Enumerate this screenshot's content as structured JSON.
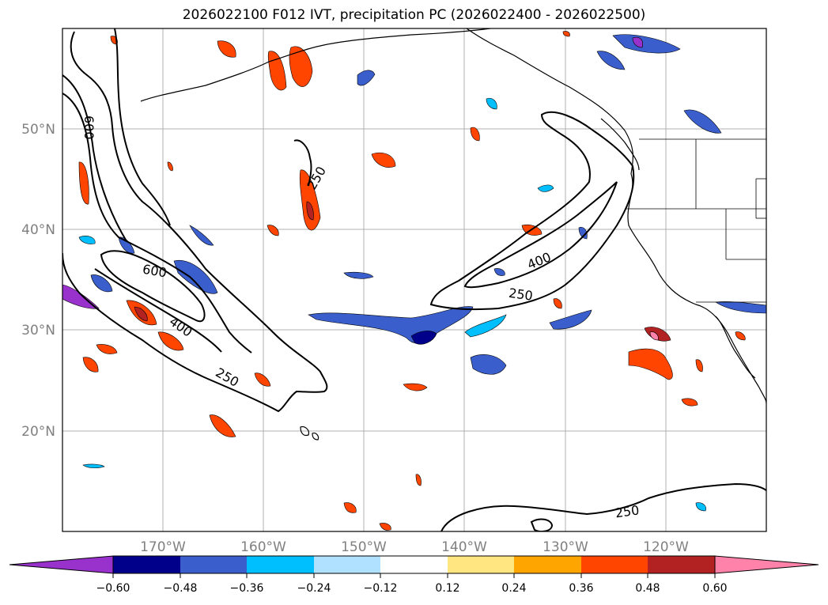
{
  "title": "2026022100 F012 IVT, precipitation PC (2026022400 - 2026022500)",
  "map": {
    "lat_labels": [
      "50°N",
      "40°N",
      "30°N",
      "20°N"
    ],
    "lon_labels": [
      "170°W",
      "160°W",
      "150°W",
      "140°W",
      "130°W",
      "120°W"
    ],
    "gridline_color": "#b0b0b0",
    "contour_labels": [
      "600",
      "250",
      "600",
      "400",
      "250",
      "400",
      "250",
      "250"
    ]
  },
  "colorbar": {
    "colors": [
      "#9932cc",
      "#00008b",
      "#3a5fcd",
      "#00bfff",
      "#b0e2ff",
      "#ffffff",
      "#ffe680",
      "#ffa500",
      "#ff4500",
      "#b22222",
      "#ff82ab"
    ],
    "tick_labels": [
      "−0.60",
      "−0.48",
      "−0.36",
      "−0.24",
      "−0.12",
      "0.12",
      "0.24",
      "0.36",
      "0.48",
      "0.60"
    ]
  }
}
